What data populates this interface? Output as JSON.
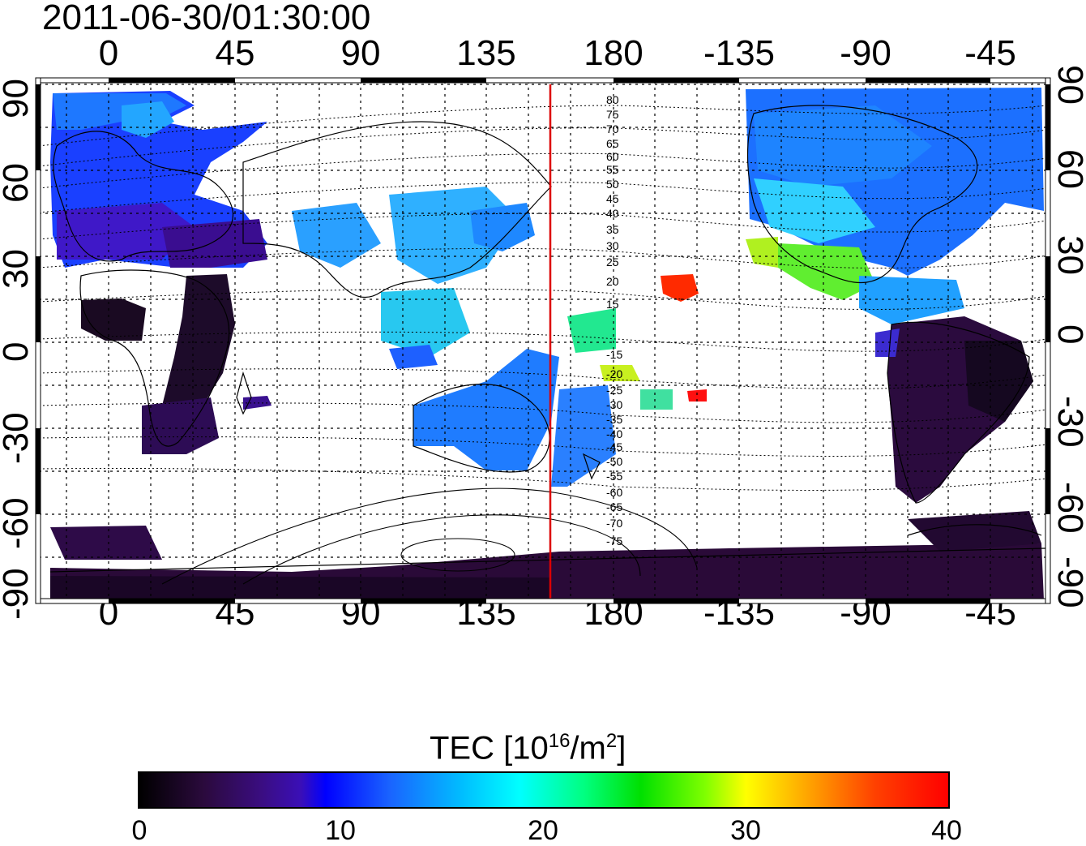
{
  "title": "2011-06-30/01:30:00",
  "axes": {
    "lon_top_labels": [
      "0",
      "45",
      "90",
      "135",
      "180",
      "-135",
      "-90",
      "-45"
    ],
    "lon_bottom_labels": [
      "0",
      "45",
      "90",
      "135",
      "180",
      "-135",
      "-90",
      "-45"
    ],
    "lat_left_labels": [
      "90",
      "60",
      "30",
      "0",
      "-30",
      "-60",
      "-90"
    ],
    "lat_right_labels": [
      "90",
      "60",
      "30",
      "0",
      "-30",
      "-60",
      "-90"
    ],
    "lon_range": [
      -25,
      330
    ],
    "lat_range": [
      -90,
      90
    ]
  },
  "map": {
    "projection": "equirectangular",
    "grid": "dotted, every 15 degrees",
    "marker_line_longitude": 157,
    "marker_line_color": "#dd0000",
    "contour_labels_north": [
      "80",
      "75",
      "70",
      "65",
      "60",
      "55",
      "50",
      "45",
      "40",
      "35",
      "30",
      "25",
      "20",
      "15"
    ],
    "contour_labels_south": [
      "-15",
      "-20",
      "-25",
      "-30",
      "-35",
      "-40",
      "-45",
      "-50",
      "-55",
      "-60",
      "-65",
      "-70",
      "-75"
    ]
  },
  "colorbar": {
    "title_prefix": "TEC  [10",
    "title_sup1": "16",
    "title_mid": "/m",
    "title_sup2": "2",
    "title_suffix": "]",
    "min": 0,
    "max": 40,
    "tick_labels": [
      "0",
      "10",
      "20",
      "30",
      "40"
    ],
    "colormap": [
      "#000000",
      "#3a0d80",
      "#0000ff",
      "#00ffff",
      "#00ff00",
      "#ffff00",
      "#ff0000"
    ]
  }
}
